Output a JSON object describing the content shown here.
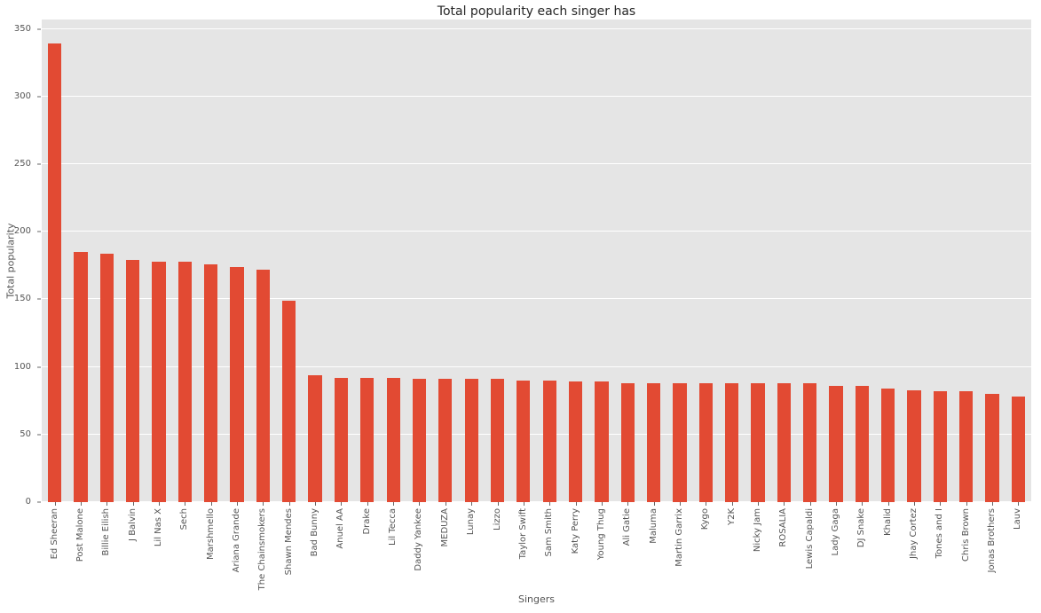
{
  "chart_data": {
    "type": "bar",
    "title": "Total popularity each singer has",
    "xlabel": "Singers",
    "ylabel": "Total popularity",
    "categories": [
      "Ed Sheeran",
      "Post Malone",
      "Billie Eilish",
      "J Balvin",
      "Lil Nas X",
      "Sech",
      "Marshmello",
      "Ariana Grande",
      "The Chainsmokers",
      "Shawn Mendes",
      "Bad Bunny",
      "Anuel AA",
      "Drake",
      "Lil Tecca",
      "Daddy Yankee",
      "MEDUZA",
      "Lunay",
      "Lizzo",
      "Taylor Swift",
      "Sam Smith",
      "Katy Perry",
      "Young Thug",
      "Ali Gatie",
      "Maluma",
      "Martin Garrix",
      "Kygo",
      "Y2K",
      "Nicky Jam",
      "ROSALIA",
      "Lewis Capaldi",
      "Lady Gaga",
      "DJ Snake",
      "Khalid",
      "Jhay Cortez",
      "Tones and I",
      "Chris Brown",
      "Jonas Brothers",
      "Lauv"
    ],
    "values": [
      339,
      185,
      184,
      179,
      178,
      178,
      176,
      174,
      172,
      149,
      94,
      92,
      92,
      92,
      91,
      91,
      91,
      91,
      90,
      90,
      89,
      89,
      88,
      88,
      88,
      88,
      88,
      88,
      88,
      88,
      86,
      86,
      84,
      83,
      82,
      82,
      80,
      78
    ],
    "yticks": [
      0,
      50,
      100,
      150,
      200,
      250,
      300,
      350
    ],
    "ylim": [
      0,
      357
    ],
    "grid": true,
    "legend": "none",
    "bar_color": "#e24a33",
    "plot_bg": "#e5e5e5",
    "grid_color": "#ffffff",
    "tick_color": "#555555"
  }
}
